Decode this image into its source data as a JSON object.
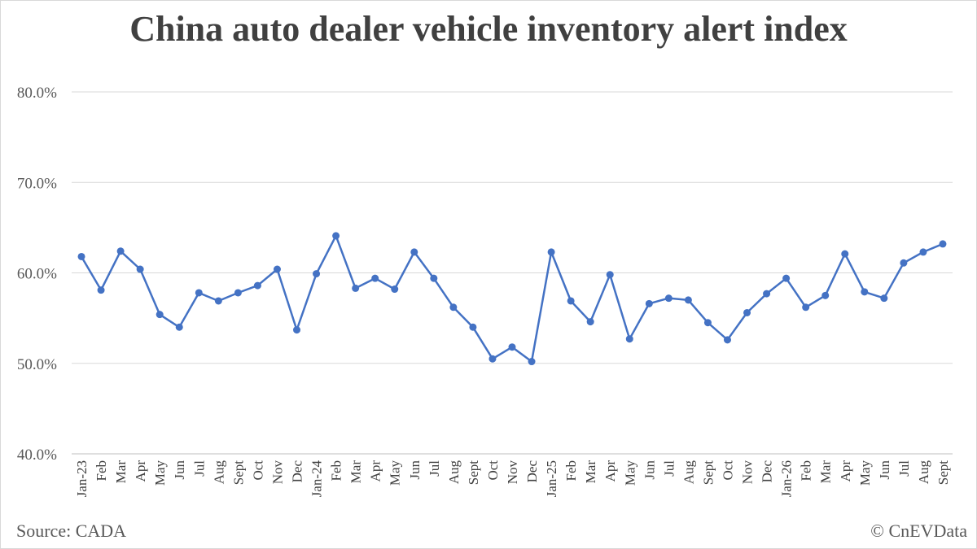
{
  "chart_data": {
    "type": "line",
    "title": "China auto dealer vehicle inventory alert index",
    "xlabel": "",
    "ylabel": "",
    "ylim": [
      40,
      80
    ],
    "y_ticks": [
      "40.0%",
      "50.0%",
      "60.0%",
      "70.0%",
      "80.0%"
    ],
    "y_tick_values": [
      40,
      50,
      60,
      70,
      80
    ],
    "grid": true,
    "legend": "none",
    "line_color": "#4472c4",
    "categories": [
      "Jan-23",
      "Feb",
      "Mar",
      "Apr",
      "May",
      "Jun",
      "Jul",
      "Aug",
      "Sept",
      "Oct",
      "Nov",
      "Dec",
      "Jan-24",
      "Feb",
      "Mar",
      "Apr",
      "May",
      "Jun",
      "Jul",
      "Aug",
      "Sept",
      "Oct",
      "Nov",
      "Dec",
      "Jan-25",
      "Feb",
      "Mar",
      "Apr",
      "May",
      "Jun",
      "Jul",
      "Aug",
      "Sept",
      "Oct",
      "Nov",
      "Dec",
      "Jan-26",
      "Feb",
      "Mar",
      "Apr",
      "May",
      "Jun",
      "Jul",
      "Aug",
      "Sept"
    ],
    "series": [
      {
        "values": [
          61.8,
          58.1,
          62.4,
          60.4,
          55.4,
          54.0,
          57.8,
          56.9,
          57.8,
          58.6,
          60.4,
          53.7,
          59.9,
          64.1,
          58.3,
          59.4,
          58.2,
          62.3,
          59.4,
          56.2,
          54.0,
          50.5,
          51.8,
          50.2,
          62.3,
          56.9,
          54.6,
          59.8,
          52.7,
          56.6,
          57.2,
          57.0,
          54.5,
          52.6,
          55.6,
          57.7,
          59.4,
          56.2,
          57.5,
          62.1,
          57.9,
          57.2,
          61.1,
          62.3,
          63.2
        ]
      }
    ]
  },
  "footer": {
    "source": "Source: CADA",
    "credit": "© CnEVData"
  }
}
